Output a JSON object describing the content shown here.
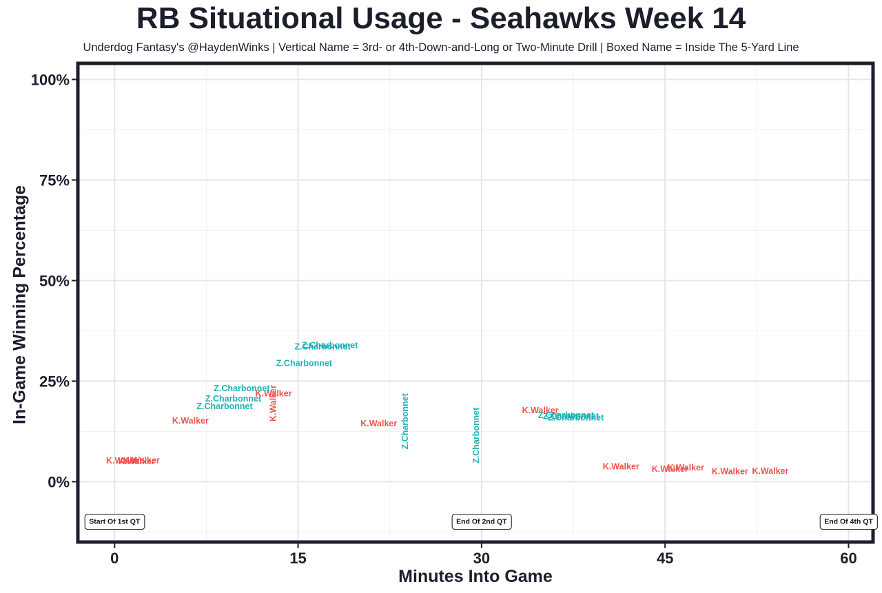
{
  "title": "RB Situational Usage - Seahawks Week 14",
  "subtitle": "Underdog Fantasy's @HaydenWinks | Vertical Name = 3rd- or 4th-Down-and-Long or Two-Minute Drill | Boxed Name = Inside The 5-Yard Line",
  "colors": {
    "K.Walker": "#f0544f",
    "Z.Charbonnet": "#1fb3b3",
    "frame": "#1c1f2b",
    "grid": "#e6e6e6"
  },
  "chart_data": {
    "type": "scatter",
    "title": "RB Situational Usage - Seahawks Week 14",
    "xlabel": "Minutes Into Game",
    "ylabel": "In-Game Winning Percentage",
    "xlim": [
      -3,
      62
    ],
    "ylim": [
      -15,
      104
    ],
    "x_ticks": [
      0,
      15,
      30,
      45,
      60
    ],
    "x_tick_labels": [
      "0",
      "15",
      "30",
      "45",
      "60"
    ],
    "y_ticks": [
      0,
      25,
      50,
      75,
      100
    ],
    "y_tick_labels": [
      "0%",
      "25%",
      "50%",
      "75%",
      "100%"
    ],
    "grid": true,
    "series": [
      {
        "name": "K.Walker",
        "points": [
          {
            "x": 0.8,
            "y": 5.1,
            "label": "K.Walker",
            "vertical": false
          },
          {
            "x": 2.2,
            "y": 5.2,
            "label": "K.Walker",
            "vertical": false
          },
          {
            "x": 1.8,
            "y": 4.9,
            "label": "K.Walker",
            "vertical": false
          },
          {
            "x": 6.2,
            "y": 15.0,
            "label": "K.Walker",
            "vertical": false
          },
          {
            "x": 13.0,
            "y": 21.8,
            "label": "K.Walker",
            "vertical": false
          },
          {
            "x": 13.0,
            "y": 19.5,
            "label": "K.Walker",
            "vertical": true
          },
          {
            "x": 21.6,
            "y": 14.3,
            "label": "K.Walker",
            "vertical": false
          },
          {
            "x": 34.8,
            "y": 17.6,
            "label": "K.Walker",
            "vertical": false
          },
          {
            "x": 41.4,
            "y": 3.6,
            "label": "K.Walker",
            "vertical": false
          },
          {
            "x": 45.4,
            "y": 3.0,
            "label": "K.Walker",
            "vertical": false
          },
          {
            "x": 46.7,
            "y": 3.4,
            "label": "K.Walker",
            "vertical": false
          },
          {
            "x": 50.3,
            "y": 2.4,
            "label": "K.Walker",
            "vertical": false
          },
          {
            "x": 53.6,
            "y": 2.5,
            "label": "K.Walker",
            "vertical": false
          }
        ]
      },
      {
        "name": "Z.Charbonnet",
        "points": [
          {
            "x": 9.0,
            "y": 18.6,
            "label": "Z.Charbonnet",
            "vertical": false
          },
          {
            "x": 9.7,
            "y": 20.5,
            "label": "Z.Charbonnet",
            "vertical": false
          },
          {
            "x": 10.4,
            "y": 23.1,
            "label": "Z.Charbonnet",
            "vertical": false
          },
          {
            "x": 15.5,
            "y": 29.3,
            "label": "Z.Charbonnet",
            "vertical": false
          },
          {
            "x": 17.0,
            "y": 33.4,
            "label": "Z.Charbonnet",
            "vertical": false
          },
          {
            "x": 17.6,
            "y": 33.8,
            "label": "Z.Charbonnet",
            "vertical": false
          },
          {
            "x": 23.8,
            "y": 15.0,
            "label": "Z.Charbonnet",
            "vertical": true
          },
          {
            "x": 29.6,
            "y": 11.5,
            "label": "Z.Charbonnet",
            "vertical": true
          },
          {
            "x": 36.9,
            "y": 16.4,
            "label": "Z.Charbonnet",
            "vertical": false
          },
          {
            "x": 37.3,
            "y": 16.1,
            "label": "Z.Charbonnet",
            "vertical": false
          },
          {
            "x": 37.7,
            "y": 15.8,
            "label": "Z.Charbonnet",
            "vertical": false
          }
        ]
      }
    ],
    "annotations": [
      {
        "text": "Start Of 1st QT",
        "x": 0,
        "y": -10
      },
      {
        "text": "End Of 2nd QT",
        "x": 30,
        "y": -10
      },
      {
        "text": "End Of 4th QT",
        "x": 60,
        "y": -10
      }
    ]
  }
}
